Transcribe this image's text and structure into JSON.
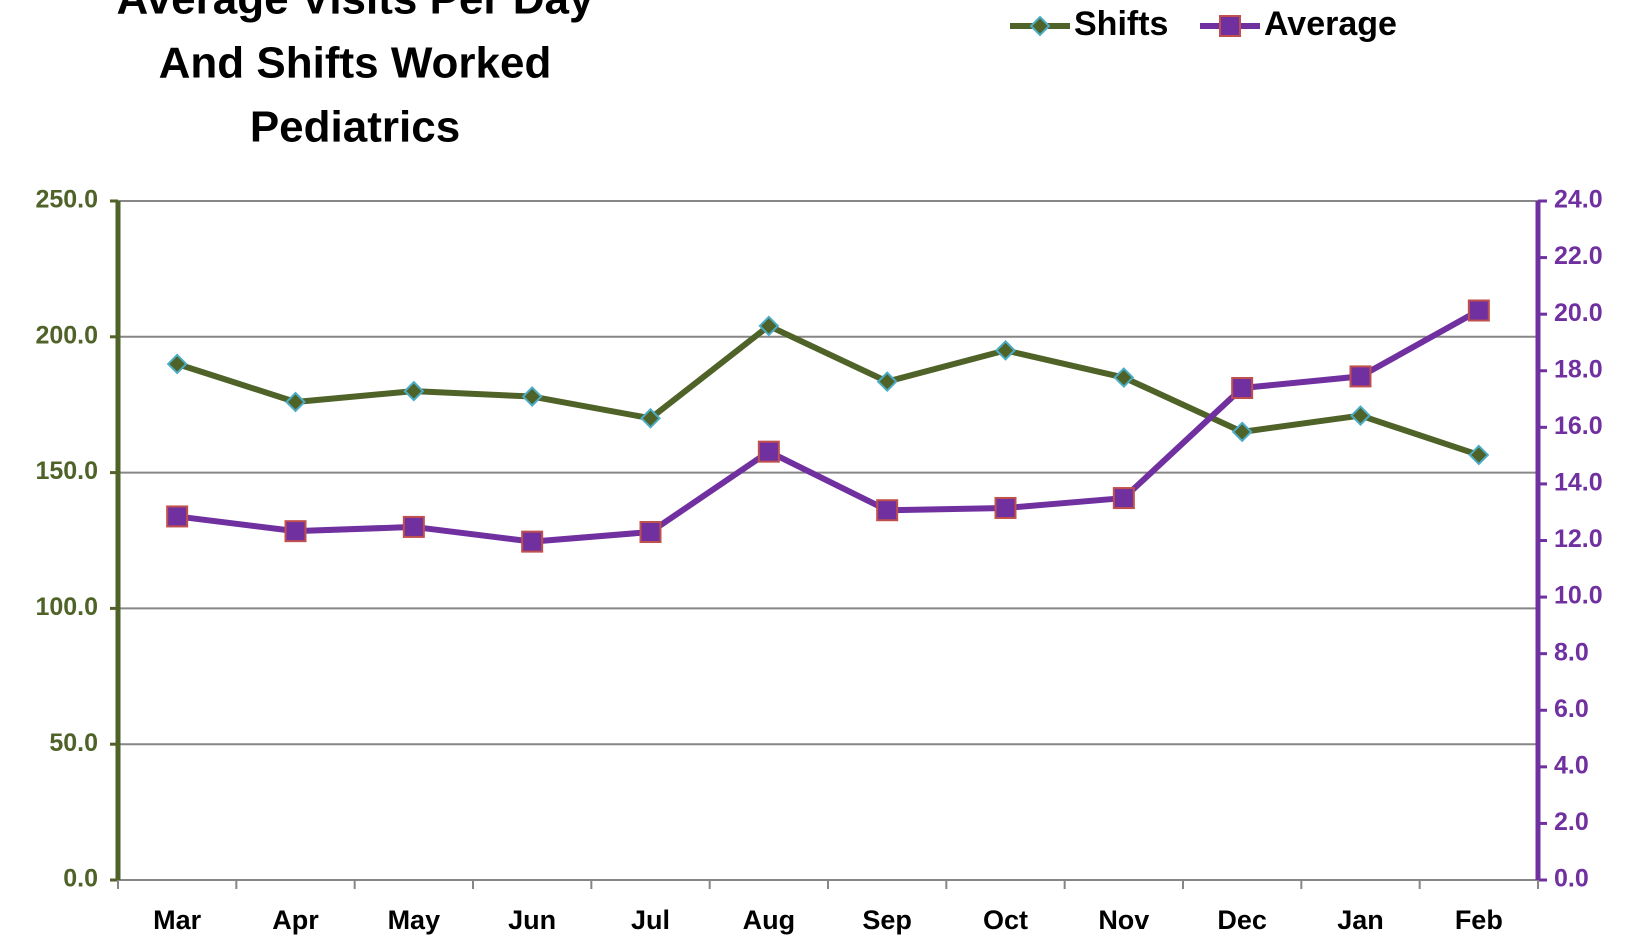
{
  "chart_data": {
    "type": "line",
    "title": [
      "Average Visits Per Day",
      "And Shifts Worked",
      "Pediatrics"
    ],
    "categories": [
      "Mar",
      "Apr",
      "May",
      "Jun",
      "Jul",
      "Aug",
      "Sep",
      "Oct",
      "Nov",
      "Dec",
      "Jan",
      "Feb"
    ],
    "series": [
      {
        "name": "Shifts",
        "color": "#4f6228",
        "values": [
          190,
          176,
          180,
          178,
          170,
          204,
          183.5,
          195,
          185,
          165,
          171,
          156.5
        ]
      },
      {
        "name": "Average",
        "color": "#7030a0",
        "axis": "y2",
        "values": [
          12.85,
          12.33,
          12.48,
          11.96,
          12.3,
          15.14,
          13.07,
          13.15,
          13.5,
          17.39,
          17.8,
          20.13
        ]
      }
    ],
    "ylim": [
      0,
      250
    ],
    "yticks": [
      {
        "value": 0,
        "label": "0.0"
      },
      {
        "value": 50,
        "label": "50.0"
      },
      {
        "value": 100,
        "label": "100.0"
      },
      {
        "value": 150,
        "label": "150.0"
      },
      {
        "value": 200,
        "label": "200.0"
      },
      {
        "value": 250,
        "label": "250.0"
      }
    ],
    "y2lim": [
      0,
      24
    ],
    "y2ticks": [
      {
        "value": 0,
        "label": "0.0"
      },
      {
        "value": 2,
        "label": "2.0"
      },
      {
        "value": 4,
        "label": "4.0"
      },
      {
        "value": 6,
        "label": "6.0"
      },
      {
        "value": 8,
        "label": "8.0"
      },
      {
        "value": 10,
        "label": "10.0"
      },
      {
        "value": 12,
        "label": "12.0"
      },
      {
        "value": 14,
        "label": "14.0"
      },
      {
        "value": 16,
        "label": "16.0"
      },
      {
        "value": 18,
        "label": "18.0"
      },
      {
        "value": 20,
        "label": "20.0"
      },
      {
        "value": 22,
        "label": "22.0"
      },
      {
        "value": 24,
        "label": "24.0"
      }
    ],
    "grid": true,
    "legend": "top-right"
  }
}
